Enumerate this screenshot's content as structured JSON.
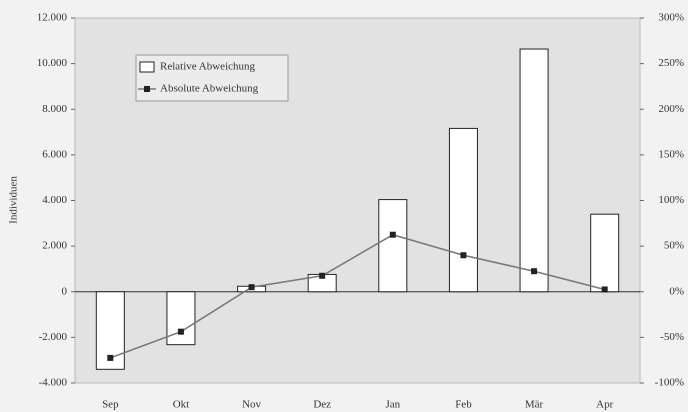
{
  "chart_data": {
    "type": "bar-line",
    "y_label": "Individuen",
    "categories": [
      "Sep",
      "Okt",
      "Nov",
      "Dez",
      "Jan",
      "Feb",
      "Mär",
      "Apr"
    ],
    "series": [
      {
        "name": "Relative Abweichung",
        "type": "bar",
        "axis": "y2",
        "color": "#ffffff",
        "values": [
          -85,
          -58,
          6,
          19,
          101,
          179,
          266,
          85
        ]
      },
      {
        "name": "Absolute Abweichung",
        "type": "line",
        "axis": "y",
        "color": "#777777",
        "values": [
          -2900,
          -1750,
          200,
          700,
          2500,
          1600,
          900,
          100
        ]
      }
    ],
    "ylim": [
      -4000,
      12000
    ],
    "yticks": [
      {
        "value": -4000,
        "label": "-4.000"
      },
      {
        "value": -2000,
        "label": "-2.000"
      },
      0,
      {
        "value": 2000,
        "label": "2.000"
      },
      {
        "value": 4000,
        "label": "4.000"
      },
      {
        "value": 6000,
        "label": "6.000"
      },
      {
        "value": 8000,
        "label": "8.000"
      },
      {
        "value": 10000,
        "label": "10.000"
      },
      {
        "value": 12000,
        "label": "12.000"
      }
    ],
    "y2lim": [
      -100,
      300
    ],
    "y2ticks": [
      {
        "value": -100,
        "label": "-100%"
      },
      {
        "value": -50,
        "label": "-50%"
      },
      {
        "value": 0,
        "label": "0%"
      },
      {
        "value": 50,
        "label": "50%"
      },
      {
        "value": 100,
        "label": "100%"
      },
      {
        "value": 150,
        "label": "150%"
      },
      {
        "value": 200,
        "label": "200%"
      },
      {
        "value": 250,
        "label": "250%"
      },
      {
        "value": 300,
        "label": "300%"
      }
    ],
    "legend": "top-left"
  }
}
